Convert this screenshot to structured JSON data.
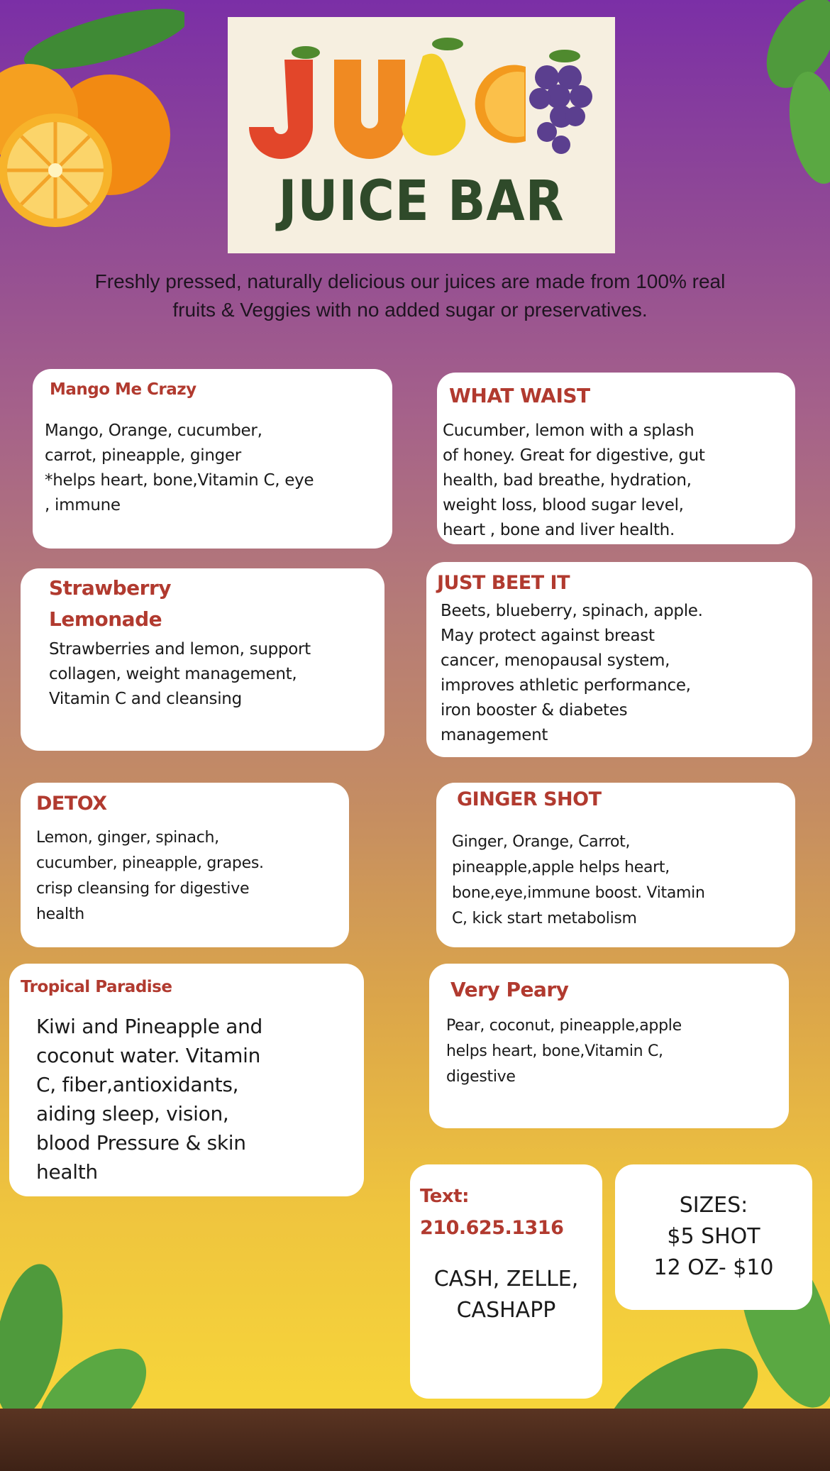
{
  "logo": {
    "name": "JUICE BAR"
  },
  "tagline": "Freshly pressed, naturally delicious our juices are made from 100% real fruits & Veggies with no added sugar or preservatives.",
  "menu": [
    {
      "title": "Mango Me Crazy",
      "description": "Mango, Orange, cucumber,\ncarrot, pineapple, ginger\n *helps heart, bone,Vitamin C, eye\n, immune"
    },
    {
      "title": "WHAT WAIST",
      "description": "Cucumber, lemon with a splash\nof honey. Great for digestive, gut\nhealth, bad breathe, hydration,\nweight loss, blood sugar level,\nheart , bone and liver health."
    },
    {
      "title": "Strawberry\nLemonade",
      "description": "Strawberries and lemon, support\ncollagen, weight management,\nVitamin C and cleansing"
    },
    {
      "title": "JUST BEET IT",
      "description": "Beets,  blueberry, spinach, apple.\nMay protect against breast\ncancer,  menopausal system,\nimproves athletic performance,\niron booster & diabetes\nmanagement"
    },
    {
      "title": "DETOX",
      "description": "Lemon, ginger,  spinach,\ncucumber, pineapple, grapes.\ncrisp cleansing for digestive\nhealth"
    },
    {
      "title": "GINGER SHOT",
      "description": "Ginger, Orange, Carrot,\npineapple,apple helps heart,\nbone,eye,immune boost. Vitamin\nC, kick start metabolism"
    },
    {
      "title": "Tropical Paradise",
      "description": "Kiwi and Pineapple and\ncoconut water.  Vitamin\nC, fiber,antioxidants,\naiding sleep, vision,\nblood Pressure & skin\nhealth"
    },
    {
      "title": "Very Peary",
      "description": "Pear, coconut, pineapple,apple\nhelps heart, bone,Vitamin C,\ndigestive"
    }
  ],
  "contact": {
    "label": "Text:",
    "phone": "210.625.1316",
    "payment": "CASH, ZELLE,\nCASHAPP"
  },
  "sizes": {
    "label": "SIZES:",
    "shot": "$5 SHOT",
    "oz": "12 OZ- $10"
  },
  "colors": {
    "title": "#b13a2f",
    "logo_text": "#2f4a2a",
    "card": "#ffffff"
  }
}
